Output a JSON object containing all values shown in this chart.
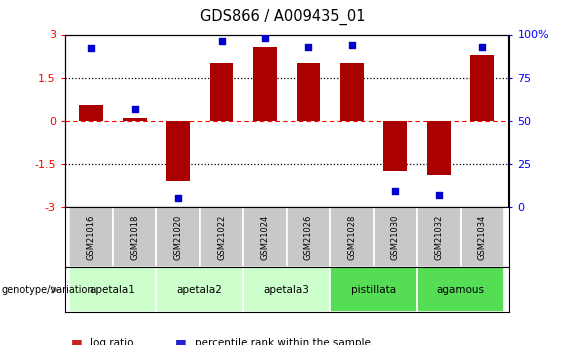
{
  "title": "GDS866 / A009435_01",
  "samples": [
    "GSM21016",
    "GSM21018",
    "GSM21020",
    "GSM21022",
    "GSM21024",
    "GSM21026",
    "GSM21028",
    "GSM21030",
    "GSM21032",
    "GSM21034"
  ],
  "log_ratios": [
    0.55,
    0.08,
    -2.1,
    2.0,
    2.55,
    2.0,
    2.0,
    -1.75,
    -1.9,
    2.3
  ],
  "percentile_ranks": [
    92,
    57,
    5,
    96,
    98,
    93,
    94,
    9,
    7,
    93
  ],
  "groups": [
    {
      "name": "apetala1",
      "indices": [
        0,
        1
      ],
      "color": "#ccffcc"
    },
    {
      "name": "apetala2",
      "indices": [
        2,
        3
      ],
      "color": "#ccffcc"
    },
    {
      "name": "apetala3",
      "indices": [
        4,
        5
      ],
      "color": "#ccffcc"
    },
    {
      "name": "pistillata",
      "indices": [
        6,
        7
      ],
      "color": "#55dd55"
    },
    {
      "name": "agamous",
      "indices": [
        8,
        9
      ],
      "color": "#55dd55"
    }
  ],
  "ylim": [
    -3,
    3
  ],
  "y2lim": [
    0,
    100
  ],
  "bar_color": "#aa0000",
  "dot_color": "#0000cc",
  "yticks_left": [
    -3,
    -1.5,
    0,
    1.5,
    3
  ],
  "yticks_right": [
    0,
    25,
    50,
    75,
    100
  ],
  "hlines_dotted": [
    -1.5,
    1.5
  ],
  "hline_dashed": 0,
  "background_color": "#ffffff",
  "sample_box_color": "#c8c8c8",
  "bar_width": 0.55,
  "legend_bar_color": "#cc2222",
  "legend_dot_color": "#2222cc"
}
